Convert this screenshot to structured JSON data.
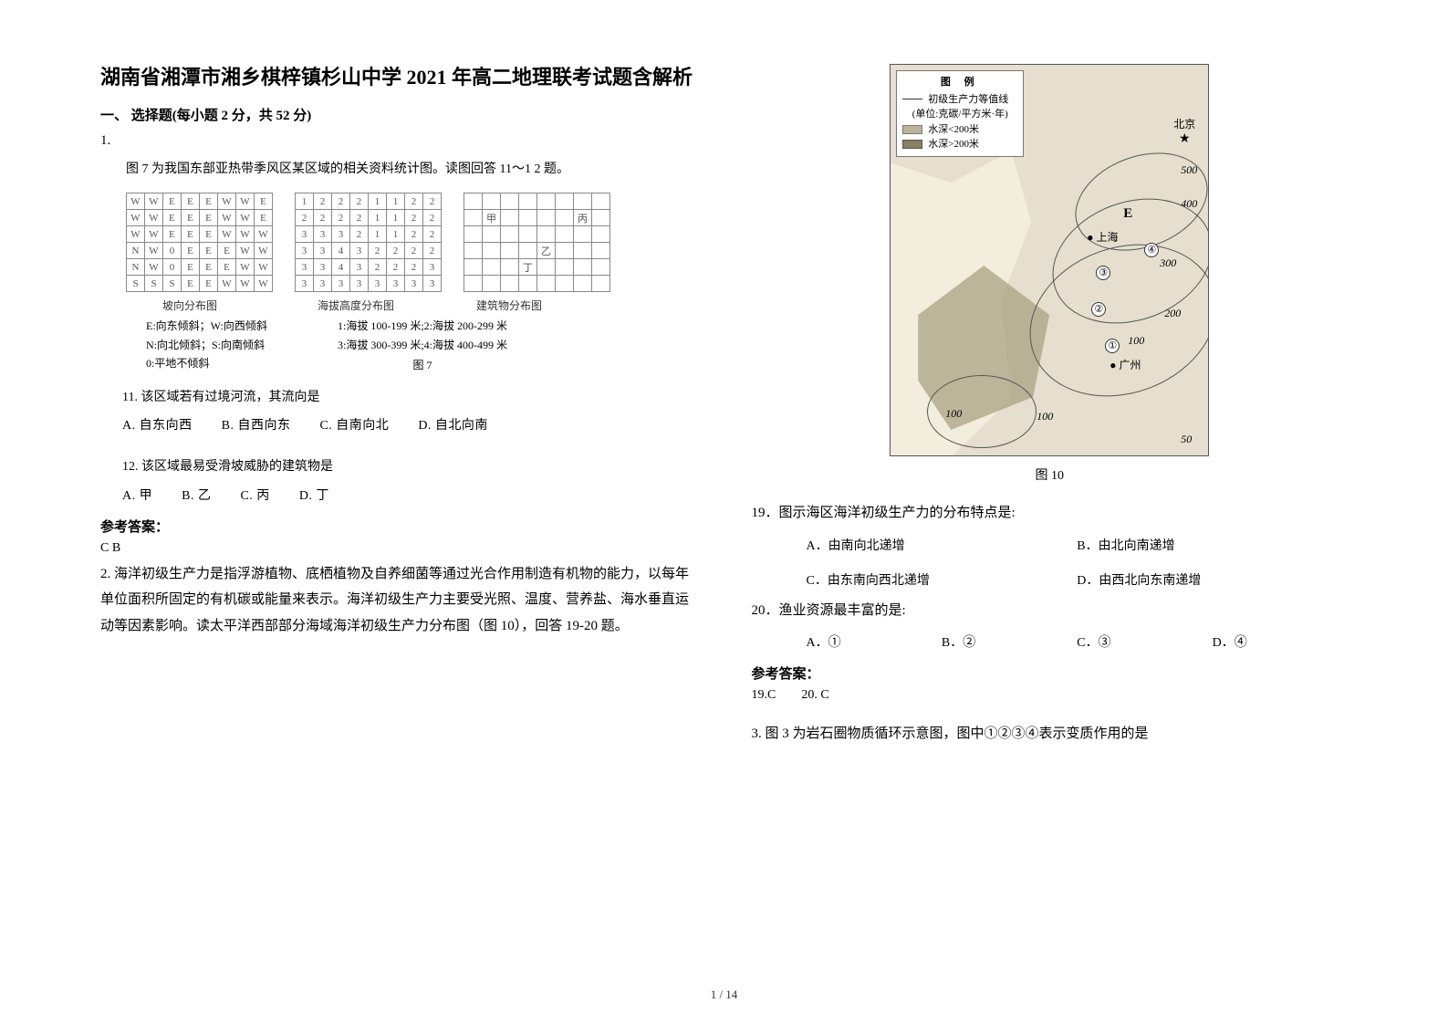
{
  "title": "湖南省湘潭市湘乡棋梓镇杉山中学 2021 年高二地理联考试题含解析",
  "section1": "一、 选择题(每小题 2 分，共 52 分)",
  "q1": {
    "num": "1.",
    "intro": "图 7 为我国东部亚热带季风区某区域的相关资料统计图。读图回答 11～1 2 题。",
    "grid_slope": [
      [
        "W",
        "W",
        "E",
        "E",
        "E",
        "W",
        "W",
        "E"
      ],
      [
        "W",
        "W",
        "E",
        "E",
        "E",
        "W",
        "W",
        "E"
      ],
      [
        "W",
        "W",
        "E",
        "E",
        "E",
        "W",
        "W",
        "W"
      ],
      [
        "N",
        "W",
        "0",
        "E",
        "E",
        "E",
        "W",
        "W"
      ],
      [
        "N",
        "W",
        "0",
        "E",
        "E",
        "E",
        "W",
        "W"
      ],
      [
        "S",
        "S",
        "S",
        "E",
        "E",
        "W",
        "W",
        "W"
      ]
    ],
    "grid_elev": [
      [
        "1",
        "2",
        "2",
        "2",
        "1",
        "1",
        "2",
        "2"
      ],
      [
        "2",
        "2",
        "2",
        "2",
        "1",
        "1",
        "2",
        "2"
      ],
      [
        "3",
        "3",
        "3",
        "2",
        "1",
        "1",
        "2",
        "2"
      ],
      [
        "3",
        "3",
        "4",
        "3",
        "2",
        "2",
        "2",
        "2"
      ],
      [
        "3",
        "3",
        "4",
        "3",
        "2",
        "2",
        "2",
        "3"
      ],
      [
        "3",
        "3",
        "3",
        "3",
        "3",
        "3",
        "3",
        "3"
      ]
    ],
    "grid_bldg": {
      "rows": 6,
      "cols": 8,
      "cells": {
        "1,1": "甲",
        "1,6": "丙",
        "3,4": "乙",
        "4,3": "丁"
      }
    },
    "label_slope": "坡向分布图",
    "label_elev": "海拔高度分布图",
    "label_bldg": "建筑物分布图",
    "legend_slope": [
      "E:向东倾斜；W:向西倾斜",
      "N:向北倾斜；S:向南倾斜",
      "0:平地不倾斜"
    ],
    "legend_elev": [
      "1:海拔 100-199 米;2:海拔 200-299 米",
      "3:海拔 300-399 米;4:海拔 400-499 米"
    ],
    "fig_caption": "图 7",
    "sub11": "11. 该区域若有过境河流，其流向是",
    "sub11_opts": [
      "A. 自东向西",
      "B. 自西向东",
      "C. 自南向北",
      "D. 自北向南"
    ],
    "sub12": "12. 该区域最易受滑坡威胁的建筑物是",
    "sub12_opts": [
      "A. 甲",
      "B. 乙",
      "C. 丙",
      "D. 丁"
    ],
    "ans_heading": "参考答案：",
    "ans": "C  B"
  },
  "q2": {
    "num_and_text": "2. 海洋初级生产力是指浮游植物、底栖植物及自养细菌等通过光合作用制造有机物的能力，以每年单位面积所固定的有机碳或能量来表示。海洋初级生产力主要受光照、温度、营养盐、海水垂直运动等因素影响。读太平洋西部部分海域海洋初级生产力分布图（图 10），回答 19-20 题。",
    "fig10": {
      "legend_title": "图  例",
      "legend_line": "初级生产力等值线",
      "legend_unit": "(单位:克碳/平方米·年)",
      "shallow": "水深<200米",
      "deep": "水深>200米",
      "beijing": "北京",
      "shanghai": "上海",
      "guangzhou": "广州",
      "e_label": "E",
      "c100a": "100",
      "c100b": "100",
      "c200": "200",
      "c300": "300",
      "c400": "400",
      "c500": "500",
      "c50": "50",
      "m1": "①",
      "m2": "②",
      "m3": "③",
      "m4": "④",
      "caption": "图 10"
    },
    "sub19": "19．图示海区海洋初级生产力的分布特点是:",
    "sub19_opts": [
      "A．由南向北递增",
      "B．由北向南递增",
      "C．由东南向西北递增",
      "D．由西北向东南递增"
    ],
    "sub20": "20．渔业资源最丰富的是:",
    "sub20_opts": [
      "A．①",
      "B．②",
      "C．③",
      "D．④"
    ],
    "ans_heading": "参考答案：",
    "ans": "19.C        20. C"
  },
  "q3": {
    "text": "3. 图 3  为岩石圈物质循环示意图，图中①②③④表示变质作用的是"
  },
  "footer": "1 / 14"
}
